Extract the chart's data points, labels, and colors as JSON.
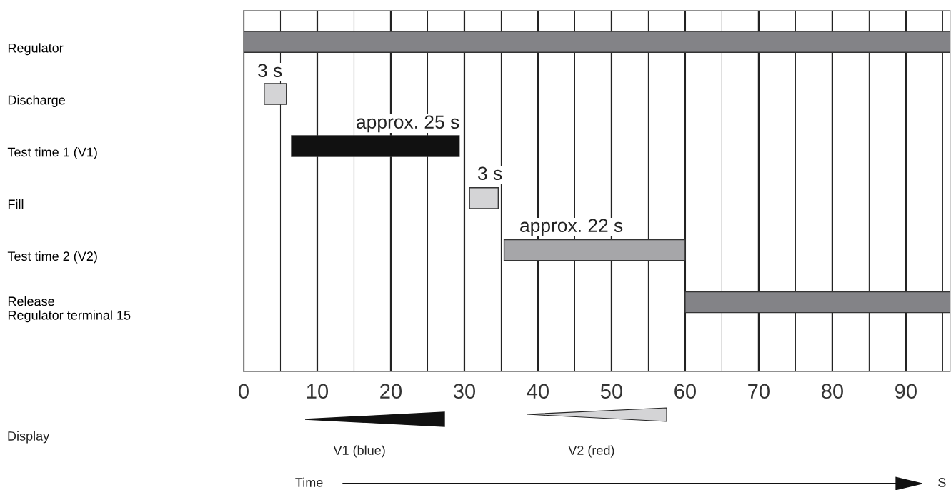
{
  "chart_data": {
    "type": "bar",
    "orientation": "horizontal",
    "categories": [
      "Regulator",
      "Discharge",
      "Test time 1 (V1)",
      "Fill",
      "Test time 2 (V2)",
      "Release\nRegulator terminal 15"
    ],
    "base": [
      0,
      2.8,
      6.5,
      30.7,
      35.4,
      60
    ],
    "values": [
      96,
      3,
      22.8,
      3.9,
      24.6,
      36
    ],
    "colors": [
      "#838387",
      "#d4d4d6",
      "#111111",
      "#d4d4d6",
      "#a6a6a9",
      "#838387"
    ],
    "xlim": [
      0,
      96
    ],
    "xticks": [
      0,
      {
        "value": 5,
        "label": null
      },
      10,
      {
        "value": 15,
        "label": null
      },
      20,
      {
        "value": 25,
        "label": null
      },
      30,
      {
        "value": 35,
        "label": null
      },
      40,
      {
        "value": 45,
        "label": null
      },
      50,
      {
        "value": 55,
        "label": null
      },
      60,
      {
        "value": 65,
        "label": null
      },
      70,
      {
        "value": 75,
        "label": null
      },
      80,
      {
        "value": 85,
        "label": null
      },
      90,
      {
        "value": 95,
        "label": null
      }
    ],
    "grid": "x",
    "annotations": [
      "3 s",
      "approx. 25 s",
      "3 s",
      "approx. 22 s",
      "Display",
      "V1 (blue)",
      "V2 (red)",
      "Time",
      "S"
    ]
  }
}
